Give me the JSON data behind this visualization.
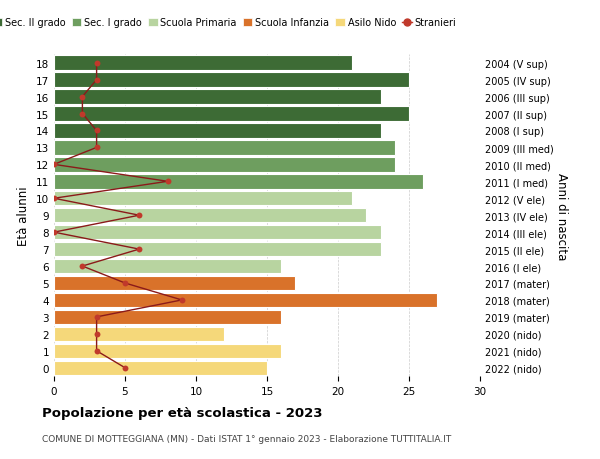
{
  "ages": [
    18,
    17,
    16,
    15,
    14,
    13,
    12,
    11,
    10,
    9,
    8,
    7,
    6,
    5,
    4,
    3,
    2,
    1,
    0
  ],
  "right_labels": [
    "2004 (V sup)",
    "2005 (IV sup)",
    "2006 (III sup)",
    "2007 (II sup)",
    "2008 (I sup)",
    "2009 (III med)",
    "2010 (II med)",
    "2011 (I med)",
    "2012 (V ele)",
    "2013 (IV ele)",
    "2014 (III ele)",
    "2015 (II ele)",
    "2016 (I ele)",
    "2017 (mater)",
    "2018 (mater)",
    "2019 (mater)",
    "2020 (nido)",
    "2021 (nido)",
    "2022 (nido)"
  ],
  "bar_values": [
    21,
    25,
    23,
    25,
    23,
    24,
    24,
    26,
    21,
    22,
    23,
    23,
    16,
    17,
    27,
    16,
    12,
    16,
    15
  ],
  "bar_colors": [
    "#3d6b35",
    "#3d6b35",
    "#3d6b35",
    "#3d6b35",
    "#3d6b35",
    "#6e9e5f",
    "#6e9e5f",
    "#6e9e5f",
    "#b8d4a0",
    "#b8d4a0",
    "#b8d4a0",
    "#b8d4a0",
    "#b8d4a0",
    "#d9722a",
    "#d9722a",
    "#d9722a",
    "#f5d87a",
    "#f5d87a",
    "#f5d87a"
  ],
  "stranieri_values": [
    3,
    3,
    2,
    2,
    3,
    3,
    0,
    8,
    0,
    6,
    0,
    6,
    2,
    5,
    9,
    3,
    3,
    3,
    5
  ],
  "legend_labels": [
    "Sec. II grado",
    "Sec. I grado",
    "Scuola Primaria",
    "Scuola Infanzia",
    "Asilo Nido",
    "Stranieri"
  ],
  "legend_colors": [
    "#3d6b35",
    "#6e9e5f",
    "#b8d4a0",
    "#d9722a",
    "#f5d87a",
    "#c0392b"
  ],
  "title": "Popolazione per età scolastica - 2023",
  "subtitle": "COMUNE DI MOTTEGGIANA (MN) - Dati ISTAT 1° gennaio 2023 - Elaborazione TUTTITALIA.IT",
  "ylabel_left": "Età alunni",
  "ylabel_right": "Anni di nascita",
  "xlim": [
    0,
    30
  ],
  "xticks": [
    0,
    5,
    10,
    15,
    20,
    25,
    30
  ],
  "background_color": "#ffffff",
  "grid_color": "#cccccc",
  "stranieri_line_color": "#8b1a1a",
  "stranieri_dot_color": "#c0392b"
}
